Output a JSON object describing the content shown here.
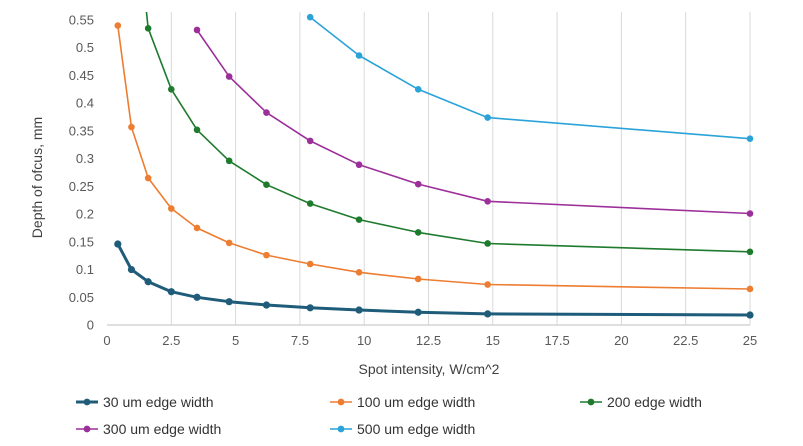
{
  "chart_data": {
    "type": "line",
    "title": "",
    "xlabel": "Spot intensity, W/cm^2",
    "ylabel": "Depth of ofcus, mm",
    "xlim": [
      0,
      25
    ],
    "ylim": [
      0,
      0.55
    ],
    "x_ticks": [
      "0",
      "2.5",
      "5",
      "7.5",
      "10",
      "12.5",
      "15",
      "17.5",
      "20",
      "22.5",
      "25"
    ],
    "y_ticks": [
      "0",
      "0.05",
      "0.1",
      "0.15",
      "0.2",
      "0.25",
      "0.3",
      "0.35",
      "0.4",
      "0.45",
      "0.5",
      "0.55"
    ],
    "grid": "vertical",
    "legend_position": "bottom",
    "series": [
      {
        "name": "30 um edge width",
        "color": "#1f5c7a",
        "points": [
          [
            0.42,
            0.146
          ],
          [
            0.95,
            0.1
          ],
          [
            1.6,
            0.078
          ],
          [
            2.5,
            0.06
          ],
          [
            3.5,
            0.05
          ],
          [
            4.75,
            0.042
          ],
          [
            6.2,
            0.036
          ],
          [
            7.9,
            0.031
          ],
          [
            9.8,
            0.027
          ],
          [
            12.1,
            0.023
          ],
          [
            14.8,
            0.02
          ],
          [
            25,
            0.018
          ]
        ]
      },
      {
        "name": "100 um edge width",
        "color": "#ed7d31",
        "points": [
          [
            0.42,
            0.54
          ],
          [
            0.95,
            0.357
          ],
          [
            1.6,
            0.265
          ],
          [
            2.5,
            0.21
          ],
          [
            3.5,
            0.175
          ],
          [
            4.75,
            0.148
          ],
          [
            6.2,
            0.126
          ],
          [
            7.9,
            0.11
          ],
          [
            9.8,
            0.095
          ],
          [
            12.1,
            0.083
          ],
          [
            14.8,
            0.073
          ],
          [
            25,
            0.065
          ]
        ]
      },
      {
        "name": "200 edge width",
        "color": "#1e7b2e",
        "points": [
          [
            1.45,
            0.6
          ],
          [
            1.6,
            0.535
          ],
          [
            2.5,
            0.425
          ],
          [
            3.5,
            0.352
          ],
          [
            4.75,
            0.296
          ],
          [
            6.2,
            0.253
          ],
          [
            7.9,
            0.219
          ],
          [
            9.8,
            0.19
          ],
          [
            12.1,
            0.167
          ],
          [
            14.8,
            0.147
          ],
          [
            25,
            0.132
          ]
        ]
      },
      {
        "name": "300 um edge width",
        "color": "#9c2f9a",
        "points": [
          [
            3.5,
            0.532
          ],
          [
            4.75,
            0.448
          ],
          [
            6.2,
            0.383
          ],
          [
            7.9,
            0.332
          ],
          [
            9.8,
            0.289
          ],
          [
            12.1,
            0.254
          ],
          [
            14.8,
            0.223
          ],
          [
            25,
            0.201
          ]
        ]
      },
      {
        "name": "500 um edge width",
        "color": "#2aa3d8",
        "points": [
          [
            7.9,
            0.555
          ],
          [
            9.8,
            0.486
          ],
          [
            12.1,
            0.425
          ],
          [
            14.8,
            0.374
          ],
          [
            25,
            0.336
          ]
        ]
      }
    ]
  }
}
